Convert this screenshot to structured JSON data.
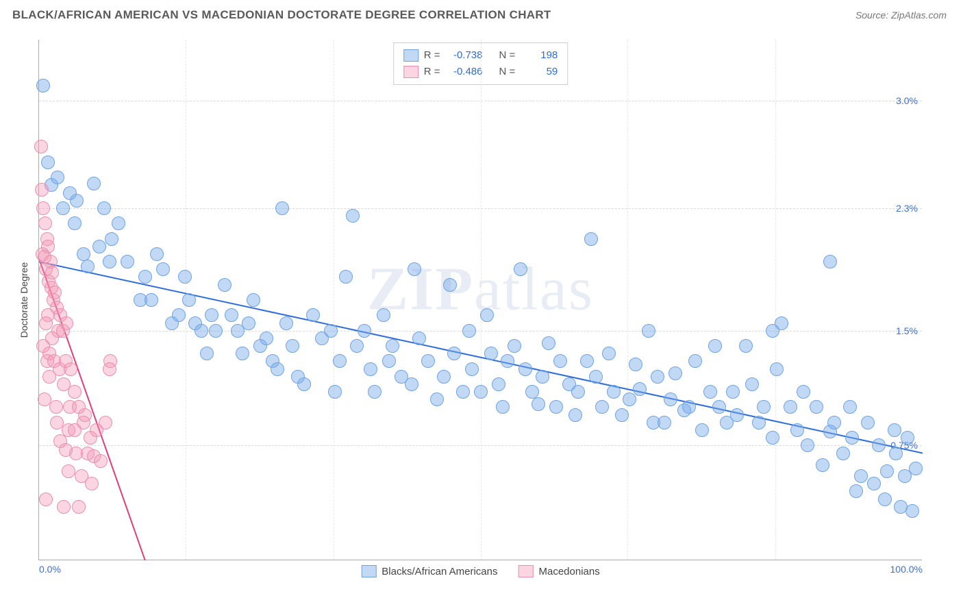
{
  "header": {
    "title": "BLACK/AFRICAN AMERICAN VS MACEDONIAN DOCTORATE DEGREE CORRELATION CHART",
    "source_prefix": "Source: ",
    "source_link": "ZipAtlas.com"
  },
  "watermark": {
    "prefix": "ZIP",
    "suffix": "atlas"
  },
  "chart": {
    "type": "scatter",
    "ylabel": "Doctorate Degree",
    "background_color": "#ffffff",
    "grid_color": "#d9d9d9",
    "axis_color": "#aaaaaa",
    "text_color": "#444444",
    "tick_color": "#3b6fd6",
    "xlim": [
      0,
      100
    ],
    "ylim": [
      0,
      3.4
    ],
    "xticks": [
      {
        "v": 0,
        "label": "0.0%"
      },
      {
        "v": 100,
        "label": "100.0%"
      }
    ],
    "xgrid_minor": [
      16.6,
      33.3,
      50,
      66.6,
      83.3
    ],
    "yticks": [
      {
        "v": 0.75,
        "label": "0.75%"
      },
      {
        "v": 1.5,
        "label": "1.5%"
      },
      {
        "v": 2.3,
        "label": "2.3%"
      },
      {
        "v": 3.0,
        "label": "3.0%"
      }
    ],
    "series": [
      {
        "id": "blacks",
        "label": "Blacks/African Americans",
        "color_fill": "rgba(120,170,235,0.45)",
        "color_stroke": "#6fa3e0",
        "marker_radius": 10,
        "trend": {
          "x1": 0,
          "y1": 1.95,
          "x2": 100,
          "y2": 0.7,
          "color": "#2d6cdf",
          "width": 2
        },
        "stats": {
          "R": "-0.738",
          "N": "198"
        },
        "points": [
          [
            0.5,
            3.1
          ],
          [
            1,
            2.6
          ],
          [
            1.4,
            2.45
          ],
          [
            2.1,
            2.5
          ],
          [
            2.7,
            2.3
          ],
          [
            3.5,
            2.4
          ],
          [
            4,
            2.2
          ],
          [
            4.3,
            2.35
          ],
          [
            5,
            2.0
          ],
          [
            5.5,
            1.92
          ],
          [
            6.2,
            2.46
          ],
          [
            6.8,
            2.05
          ],
          [
            7.4,
            2.3
          ],
          [
            8,
            1.95
          ],
          [
            8.2,
            2.1
          ],
          [
            9,
            2.2
          ],
          [
            10,
            1.95
          ],
          [
            11.5,
            1.7
          ],
          [
            12,
            1.85
          ],
          [
            12.7,
            1.7
          ],
          [
            13.3,
            2.0
          ],
          [
            14,
            1.9
          ],
          [
            15,
            1.55
          ],
          [
            15.8,
            1.6
          ],
          [
            16.5,
            1.85
          ],
          [
            17,
            1.7
          ],
          [
            17.7,
            1.55
          ],
          [
            18.4,
            1.5
          ],
          [
            19,
            1.35
          ],
          [
            19.5,
            1.6
          ],
          [
            20,
            1.5
          ],
          [
            21,
            1.8
          ],
          [
            21.8,
            1.6
          ],
          [
            22.5,
            1.5
          ],
          [
            23,
            1.35
          ],
          [
            23.7,
            1.55
          ],
          [
            24.3,
            1.7
          ],
          [
            25,
            1.4
          ],
          [
            25.7,
            1.45
          ],
          [
            26.4,
            1.3
          ],
          [
            27,
            1.25
          ],
          [
            27.5,
            2.3
          ],
          [
            28,
            1.55
          ],
          [
            28.7,
            1.4
          ],
          [
            29.3,
            1.2
          ],
          [
            30,
            1.15
          ],
          [
            31,
            1.6
          ],
          [
            32,
            1.45
          ],
          [
            33,
            1.5
          ],
          [
            33.5,
            1.1
          ],
          [
            34,
            1.3
          ],
          [
            34.7,
            1.85
          ],
          [
            35.5,
            2.25
          ],
          [
            36,
            1.4
          ],
          [
            36.8,
            1.5
          ],
          [
            37.5,
            1.25
          ],
          [
            38,
            1.1
          ],
          [
            39,
            1.6
          ],
          [
            39.6,
            1.3
          ],
          [
            40,
            1.4
          ],
          [
            41,
            1.2
          ],
          [
            42.2,
            1.15
          ],
          [
            42.5,
            1.9
          ],
          [
            43,
            1.45
          ],
          [
            44,
            1.3
          ],
          [
            45,
            1.05
          ],
          [
            45.8,
            1.2
          ],
          [
            46.5,
            1.8
          ],
          [
            47,
            1.35
          ],
          [
            48,
            1.1
          ],
          [
            48.7,
            1.5
          ],
          [
            49,
            1.25
          ],
          [
            50,
            1.1
          ],
          [
            50.7,
            1.6
          ],
          [
            51.2,
            1.35
          ],
          [
            52,
            1.15
          ],
          [
            52.5,
            1.0
          ],
          [
            53,
            1.3
          ],
          [
            53.8,
            1.4
          ],
          [
            54.5,
            1.9
          ],
          [
            55,
            1.25
          ],
          [
            55.8,
            1.1
          ],
          [
            56.5,
            1.02
          ],
          [
            57,
            1.2
          ],
          [
            57.7,
            1.42
          ],
          [
            58.5,
            1.0
          ],
          [
            59,
            1.3
          ],
          [
            60,
            1.15
          ],
          [
            60.7,
            0.95
          ],
          [
            61,
            1.1
          ],
          [
            62,
            1.3
          ],
          [
            62.5,
            2.1
          ],
          [
            63,
            1.2
          ],
          [
            63.7,
            1.0
          ],
          [
            64.5,
            1.35
          ],
          [
            65,
            1.1
          ],
          [
            66,
            0.95
          ],
          [
            66.8,
            1.05
          ],
          [
            67.5,
            1.28
          ],
          [
            68,
            1.12
          ],
          [
            69,
            1.5
          ],
          [
            69.5,
            0.9
          ],
          [
            70,
            1.2
          ],
          [
            70.8,
            0.9
          ],
          [
            71.5,
            1.05
          ],
          [
            72,
            1.22
          ],
          [
            73,
            0.98
          ],
          [
            73.6,
            1.0
          ],
          [
            74.3,
            1.3
          ],
          [
            75,
            0.85
          ],
          [
            76,
            1.1
          ],
          [
            76.5,
            1.4
          ],
          [
            77,
            1.0
          ],
          [
            77.8,
            0.9
          ],
          [
            78.5,
            1.1
          ],
          [
            79,
            0.95
          ],
          [
            80,
            1.4
          ],
          [
            80.7,
            1.15
          ],
          [
            81.5,
            0.9
          ],
          [
            82,
            1.0
          ],
          [
            83,
            0.8
          ],
          [
            83.5,
            1.25
          ],
          [
            84,
            1.55
          ],
          [
            83,
            1.5
          ],
          [
            85,
            1.0
          ],
          [
            85.8,
            0.85
          ],
          [
            86.5,
            1.1
          ],
          [
            87,
            0.75
          ],
          [
            88,
            1.0
          ],
          [
            88.7,
            0.62
          ],
          [
            89.5,
            1.95
          ],
          [
            89.5,
            0.84
          ],
          [
            90,
            0.9
          ],
          [
            91,
            0.7
          ],
          [
            91.8,
            1.0
          ],
          [
            92,
            0.8
          ],
          [
            92.5,
            0.45
          ],
          [
            93,
            0.55
          ],
          [
            93.8,
            0.9
          ],
          [
            94.5,
            0.5
          ],
          [
            95,
            0.75
          ],
          [
            95.7,
            0.4
          ],
          [
            96,
            0.58
          ],
          [
            96.8,
            0.85
          ],
          [
            97,
            0.7
          ],
          [
            97.5,
            0.35
          ],
          [
            98,
            0.55
          ],
          [
            98.3,
            0.8
          ],
          [
            98.8,
            0.32
          ],
          [
            99.2,
            0.6
          ]
        ]
      },
      {
        "id": "macedonians",
        "label": "Macedonians",
        "color_fill": "rgba(245,150,180,0.4)",
        "color_stroke": "#e88fb0",
        "marker_radius": 10,
        "trend": {
          "x1": 0,
          "y1": 1.97,
          "x2": 12,
          "y2": 0.0,
          "color": "#e23d7a",
          "width": 2
        },
        "stats": {
          "R": "-0.486",
          "N": "59"
        },
        "points": [
          [
            0.25,
            2.7
          ],
          [
            0.3,
            2.42
          ],
          [
            0.5,
            2.3
          ],
          [
            0.7,
            2.2
          ],
          [
            0.9,
            2.1
          ],
          [
            0.4,
            2.0
          ],
          [
            1.0,
            2.05
          ],
          [
            1.3,
            1.95
          ],
          [
            0.8,
            1.9
          ],
          [
            1.5,
            1.88
          ],
          [
            1.1,
            1.82
          ],
          [
            1.4,
            1.78
          ],
          [
            0.6,
            1.98
          ],
          [
            1.6,
            1.7
          ],
          [
            1.8,
            1.75
          ],
          [
            2.0,
            1.65
          ],
          [
            1.0,
            1.6
          ],
          [
            0.8,
            1.55
          ],
          [
            2.2,
            1.5
          ],
          [
            1.5,
            1.45
          ],
          [
            2.4,
            1.6
          ],
          [
            2.7,
            1.5
          ],
          [
            0.5,
            1.4
          ],
          [
            1.2,
            1.35
          ],
          [
            3.1,
            1.55
          ],
          [
            0.9,
            1.3
          ],
          [
            1.7,
            1.3
          ],
          [
            2.3,
            1.25
          ],
          [
            3.0,
            1.3
          ],
          [
            3.6,
            1.25
          ],
          [
            4.0,
            1.1
          ],
          [
            1.2,
            1.2
          ],
          [
            2.8,
            1.15
          ],
          [
            0.6,
            1.05
          ],
          [
            1.9,
            1.0
          ],
          [
            3.5,
            1.0
          ],
          [
            4.5,
            1.0
          ],
          [
            5.2,
            0.95
          ],
          [
            2.0,
            0.9
          ],
          [
            3.3,
            0.85
          ],
          [
            4.0,
            0.85
          ],
          [
            5.0,
            0.9
          ],
          [
            5.8,
            0.8
          ],
          [
            6.5,
            0.85
          ],
          [
            2.4,
            0.78
          ],
          [
            3.0,
            0.72
          ],
          [
            4.2,
            0.7
          ],
          [
            5.5,
            0.7
          ],
          [
            6.2,
            0.68
          ],
          [
            7.0,
            0.65
          ],
          [
            8.1,
            1.3
          ],
          [
            7.5,
            0.9
          ],
          [
            3.3,
            0.58
          ],
          [
            4.8,
            0.55
          ],
          [
            6.0,
            0.5
          ],
          [
            0.8,
            0.4
          ],
          [
            2.8,
            0.35
          ],
          [
            4.5,
            0.35
          ],
          [
            8.0,
            1.25
          ]
        ]
      }
    ],
    "legend_top": {
      "labels": {
        "R": "R =",
        "N": "N ="
      },
      "swatch_border": {
        "blue": "#6fa3e0",
        "pink": "#e88fb0"
      },
      "swatch_fill": {
        "blue": "rgba(120,170,235,0.45)",
        "pink": "rgba(245,150,180,0.4)"
      }
    }
  }
}
